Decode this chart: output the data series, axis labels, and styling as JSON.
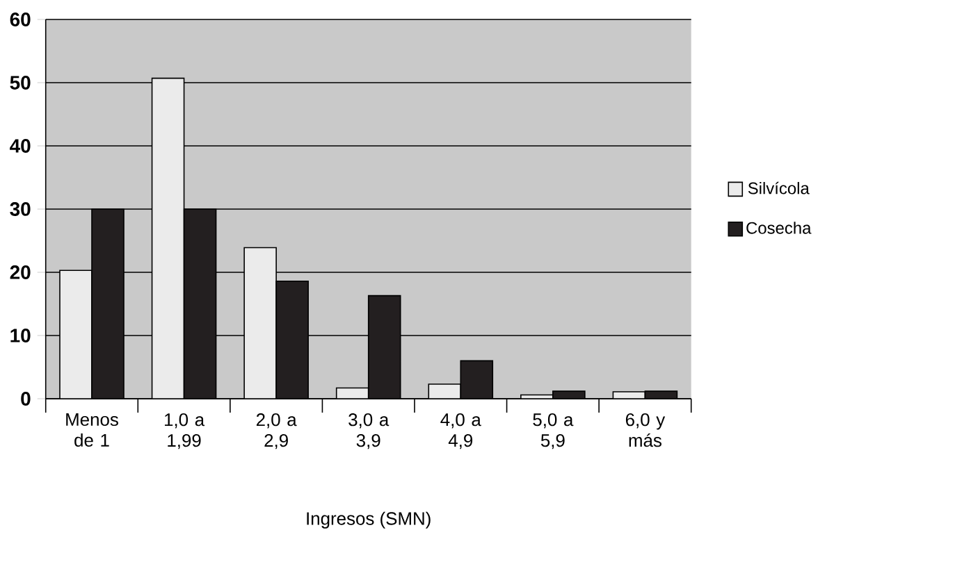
{
  "chart_data": {
    "type": "bar",
    "xlabel": "Ingresos (SMN)",
    "categories": [
      "Menos de 1",
      "1,0 a 1,99",
      "2,0 a 2,9",
      "3,0 a 3,9",
      "4,0 a 4,9",
      "5,0 a 5,9",
      "6,0 y más"
    ],
    "series": [
      {
        "name": "Silvícola",
        "color": "#ebebeb",
        "values": [
          20.3,
          50.7,
          23.9,
          1.7,
          2.3,
          0.6,
          1.1
        ]
      },
      {
        "name": "Cosecha",
        "color": "#231f20",
        "values": [
          30,
          30,
          18.6,
          16.3,
          6,
          1.2,
          1.2
        ]
      }
    ],
    "ylim": [
      0,
      60
    ],
    "yticks": [
      0,
      10,
      20,
      30,
      40,
      50,
      60
    ],
    "grid": "y",
    "legend": "right"
  }
}
